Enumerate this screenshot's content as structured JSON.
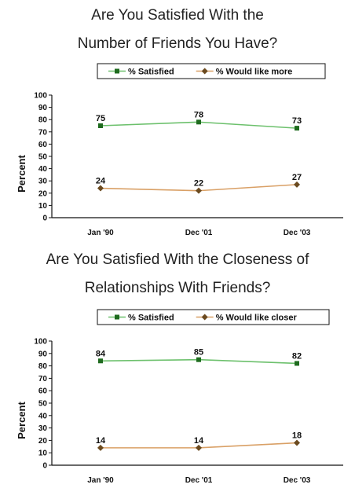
{
  "chart_data": [
    {
      "type": "line",
      "title_lines": [
        "Are You Satisfied With the",
        "Number of Friends You Have?"
      ],
      "categories": [
        "Jan '90",
        "Dec '01",
        "Dec '03"
      ],
      "series": [
        {
          "name": "% Satisfied",
          "values": [
            75,
            78,
            73
          ],
          "color": "#6cc06c",
          "marker_color": "#1f6b1f"
        },
        {
          "name": "% Would like more",
          "values": [
            24,
            22,
            27
          ],
          "color": "#d9a066",
          "marker_color": "#6b4a1f"
        }
      ],
      "ylabel": "Percent",
      "ylim": [
        0,
        100
      ],
      "yticks": [
        "0",
        "10",
        "20",
        "30",
        "40",
        "50",
        "60",
        "70",
        "80",
        "90",
        "100"
      ],
      "grid": false,
      "legend": "top"
    },
    {
      "type": "line",
      "title_lines": [
        "Are You Satisfied With the Closeness of",
        "Relationships With Friends?"
      ],
      "categories": [
        "Jan '90",
        "Dec '01",
        "Dec '03"
      ],
      "series": [
        {
          "name": "% Satisfied",
          "values": [
            84,
            85,
            82
          ],
          "color": "#6cc06c",
          "marker_color": "#1f6b1f"
        },
        {
          "name": "% Would like closer",
          "values": [
            14,
            14,
            18
          ],
          "color": "#d9a066",
          "marker_color": "#6b4a1f"
        }
      ],
      "ylabel": "Percent",
      "ylim": [
        0,
        100
      ],
      "yticks": [
        "0",
        "10",
        "20",
        "30",
        "40",
        "50",
        "60",
        "70",
        "80",
        "90",
        "100"
      ],
      "grid": false,
      "legend": "top"
    }
  ]
}
